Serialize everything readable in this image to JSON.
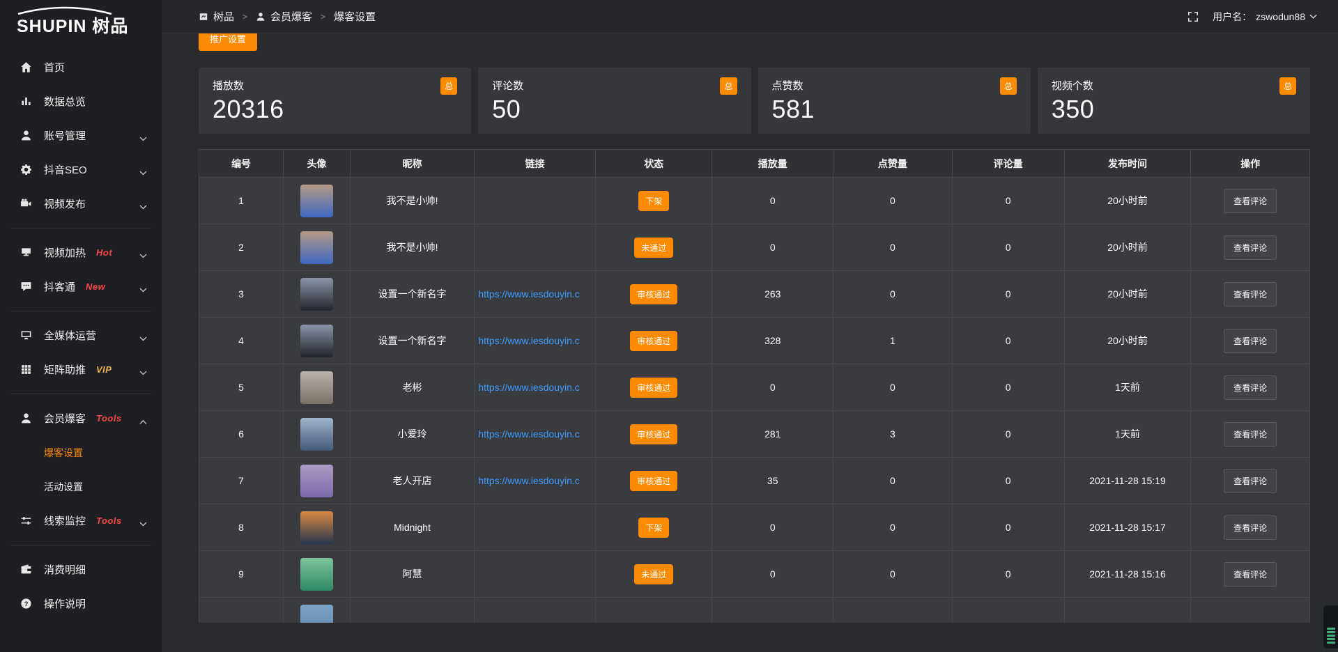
{
  "colors": {
    "accent": "#fb8a05",
    "link": "#3d9bff",
    "tag_red": "#f54545",
    "tag_gold": "#f0b14d"
  },
  "sidebar": {
    "logo_text": "SHUPIN",
    "logo_suffix": "树品",
    "items": [
      {
        "label": "首页",
        "icon": "home-icon"
      },
      {
        "label": "数据总览",
        "icon": "bar-chart-icon"
      },
      {
        "label": "账号管理",
        "icon": "user-icon",
        "chevron": "down"
      },
      {
        "label": "抖音SEO",
        "icon": "gear-icon",
        "chevron": "down"
      },
      {
        "label": "视频发布",
        "icon": "video-camera-icon",
        "chevron": "down",
        "divider_after": true
      },
      {
        "label": "视频加热",
        "icon": "screen-icon",
        "tag": "Hot",
        "tag_color": "#f54545",
        "chevron": "down"
      },
      {
        "label": "抖客通",
        "icon": "comment-icon",
        "tag": "New",
        "tag_color": "#f54545",
        "chevron": "down",
        "divider_after": true
      },
      {
        "label": "全媒体运营",
        "icon": "monitor-icon",
        "chevron": "down"
      },
      {
        "label": "矩阵助推",
        "icon": "grid-icon",
        "tag": "VIP",
        "tag_color": "#f0b14d",
        "chevron": "down",
        "divider_after": true
      },
      {
        "label": "会员爆客",
        "icon": "member-icon",
        "tag": "Tools",
        "tag_color": "#f54545",
        "chevron": "up",
        "children": [
          {
            "label": "爆客设置",
            "active": true
          },
          {
            "label": "活动设置"
          }
        ]
      },
      {
        "label": "线索监控",
        "icon": "sliders-icon",
        "tag": "Tools",
        "tag_color": "#f54545",
        "chevron": "down",
        "divider_after": true
      },
      {
        "label": "消费明细",
        "icon": "wallet-icon"
      },
      {
        "label": "操作说明",
        "icon": "help-icon"
      }
    ]
  },
  "topbar": {
    "breadcrumb": [
      {
        "label": "树品",
        "icon": "app-icon"
      },
      {
        "label": "会员爆客",
        "icon": "member-icon"
      },
      {
        "label": "爆客设置"
      }
    ],
    "separator": ">",
    "username_label": "用户名：",
    "username": "zswodun88"
  },
  "toolbar": {
    "promo_button": "推广设置"
  },
  "stats": [
    {
      "label": "播放数",
      "value": "20316",
      "badge": "总"
    },
    {
      "label": "评论数",
      "value": "50",
      "badge": "总"
    },
    {
      "label": "点赞数",
      "value": "581",
      "badge": "总"
    },
    {
      "label": "视频个数",
      "value": "350",
      "badge": "总"
    }
  ],
  "table": {
    "columns": [
      "编号",
      "头像",
      "昵称",
      "链接",
      "状态",
      "播放量",
      "点赞量",
      "评论量",
      "发布时间",
      "操作"
    ],
    "action_label": "查看评论",
    "rows": [
      {
        "id": "1",
        "nickname": "我不是小帅!",
        "link": "",
        "status": "下架",
        "plays": "0",
        "likes": "0",
        "comments": "0",
        "time": "20小时前",
        "avatar": [
          "#b59a85",
          "#3f68c2"
        ]
      },
      {
        "id": "2",
        "nickname": "我不是小帅!",
        "link": "",
        "status": "未通过",
        "plays": "0",
        "likes": "0",
        "comments": "0",
        "time": "20小时前",
        "avatar": [
          "#b59a85",
          "#3f68c2"
        ]
      },
      {
        "id": "3",
        "nickname": "设置一个新名字",
        "link": "https://www.iesdouyin.c",
        "status": "审核通过",
        "plays": "263",
        "likes": "0",
        "comments": "0",
        "time": "20小时前",
        "avatar": [
          "#8a93a6",
          "#23242c"
        ]
      },
      {
        "id": "4",
        "nickname": "设置一个新名字",
        "link": "https://www.iesdouyin.c",
        "status": "审核通过",
        "plays": "328",
        "likes": "1",
        "comments": "0",
        "time": "20小时前",
        "avatar": [
          "#8a93a6",
          "#23242c"
        ]
      },
      {
        "id": "5",
        "nickname": "老彬",
        "link": "https://www.iesdouyin.c",
        "status": "审核通过",
        "plays": "0",
        "likes": "0",
        "comments": "0",
        "time": "1天前",
        "avatar": [
          "#b9b3ac",
          "#7a7068"
        ]
      },
      {
        "id": "6",
        "nickname": "小爱玲",
        "link": "https://www.iesdouyin.c",
        "status": "审核通过",
        "plays": "281",
        "likes": "3",
        "comments": "0",
        "time": "1天前",
        "avatar": [
          "#9db4cc",
          "#44597a"
        ]
      },
      {
        "id": "7",
        "nickname": "老人开店",
        "link": "https://www.iesdouyin.c",
        "status": "审核通过",
        "plays": "35",
        "likes": "0",
        "comments": "0",
        "time": "2021-11-28 15:19",
        "avatar": [
          "#ab9cc6",
          "#7b6aa8"
        ]
      },
      {
        "id": "8",
        "nickname": "Midnight",
        "link": "",
        "status": "下架",
        "plays": "0",
        "likes": "0",
        "comments": "0",
        "time": "2021-11-28 15:17",
        "avatar": [
          "#d98a45",
          "#27354d"
        ]
      },
      {
        "id": "9",
        "nickname": "阿慧",
        "link": "",
        "status": "未通过",
        "plays": "0",
        "likes": "0",
        "comments": "0",
        "time": "2021-11-28 15:16",
        "avatar": [
          "#7ec39b",
          "#2e8a66"
        ]
      }
    ],
    "partial_row": {
      "avatar": [
        "#7da3c4",
        "#5d86ab"
      ]
    }
  }
}
